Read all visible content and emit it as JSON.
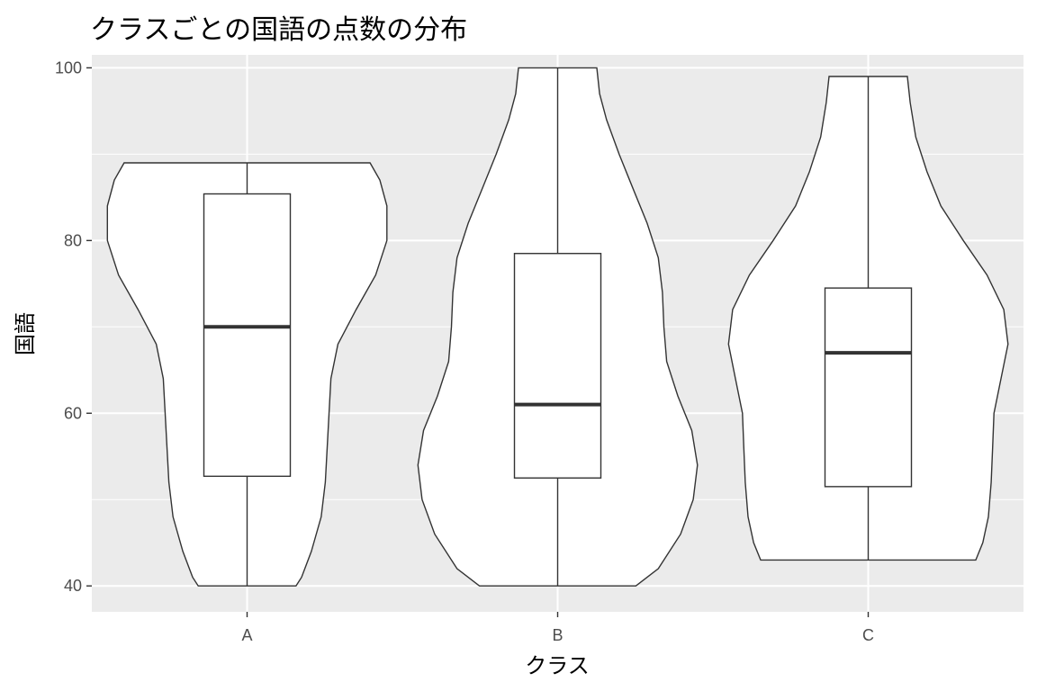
{
  "chart_data": {
    "type": "violin",
    "title": "クラスごとの国語の点数の分布",
    "xlabel": "クラス",
    "ylabel": "国語",
    "ylim": [
      37,
      101.5
    ],
    "yticks": [
      40,
      60,
      80,
      100
    ],
    "grid": true,
    "categories": [
      "A",
      "B",
      "C"
    ],
    "violins": [
      {
        "category": "A",
        "min": 40,
        "q1": 52.7,
        "median": 70,
        "q3": 85.4,
        "max": 89,
        "density_profile": [
          [
            40,
            0.35
          ],
          [
            41,
            0.39
          ],
          [
            44,
            0.46
          ],
          [
            48,
            0.53
          ],
          [
            52,
            0.56
          ],
          [
            58,
            0.58
          ],
          [
            64,
            0.6
          ],
          [
            68,
            0.65
          ],
          [
            72,
            0.78
          ],
          [
            76,
            0.92
          ],
          [
            80,
            1.0
          ],
          [
            84,
            1.0
          ],
          [
            87,
            0.95
          ],
          [
            89,
            0.88
          ]
        ]
      },
      {
        "category": "B",
        "min": 40,
        "q1": 52.5,
        "median": 61,
        "q3": 78.5,
        "max": 100,
        "density_profile": [
          [
            40,
            0.56
          ],
          [
            42,
            0.72
          ],
          [
            46,
            0.88
          ],
          [
            50,
            0.97
          ],
          [
            54,
            1.0
          ],
          [
            58,
            0.96
          ],
          [
            62,
            0.86
          ],
          [
            66,
            0.78
          ],
          [
            70,
            0.76
          ],
          [
            74,
            0.75
          ],
          [
            78,
            0.72
          ],
          [
            82,
            0.64
          ],
          [
            86,
            0.54
          ],
          [
            90,
            0.44
          ],
          [
            94,
            0.35
          ],
          [
            97,
            0.3
          ],
          [
            100,
            0.28
          ]
        ]
      },
      {
        "category": "C",
        "min": 43,
        "q1": 51.5,
        "median": 67,
        "q3": 74.5,
        "max": 99,
        "density_profile": [
          [
            43,
            0.77
          ],
          [
            45,
            0.82
          ],
          [
            48,
            0.86
          ],
          [
            52,
            0.88
          ],
          [
            56,
            0.89
          ],
          [
            60,
            0.9
          ],
          [
            64,
            0.95
          ],
          [
            68,
            1.0
          ],
          [
            72,
            0.97
          ],
          [
            76,
            0.85
          ],
          [
            80,
            0.68
          ],
          [
            84,
            0.52
          ],
          [
            88,
            0.42
          ],
          [
            92,
            0.34
          ],
          [
            96,
            0.3
          ],
          [
            99,
            0.28
          ]
        ]
      }
    ],
    "colors": {
      "panel_background": "#EBEBEB",
      "grid_major": "#FFFFFF",
      "violin_fill": "#FFFFFF",
      "outline": "#333333",
      "tick_text": "#4D4D4D"
    }
  }
}
